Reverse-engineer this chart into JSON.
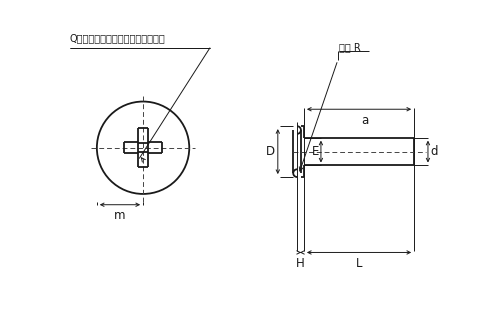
{
  "bg_color": "#ffffff",
  "line_color": "#1a1a1a",
  "text_color": "#1a1a1a",
  "annotation_text1": "Q十字穴寸法はハイオス規格に依る",
  "annotation_text2": "自然 R",
  "label_D": "D",
  "label_E": "E",
  "label_d": "d",
  "label_m": "m",
  "label_a": "a",
  "label_H": "H",
  "label_L": "L",
  "font_size_annot": 7.0,
  "font_size_label": 8.5,
  "lw_main": 1.3,
  "lw_dim": 0.7,
  "lw_dash": 0.7
}
